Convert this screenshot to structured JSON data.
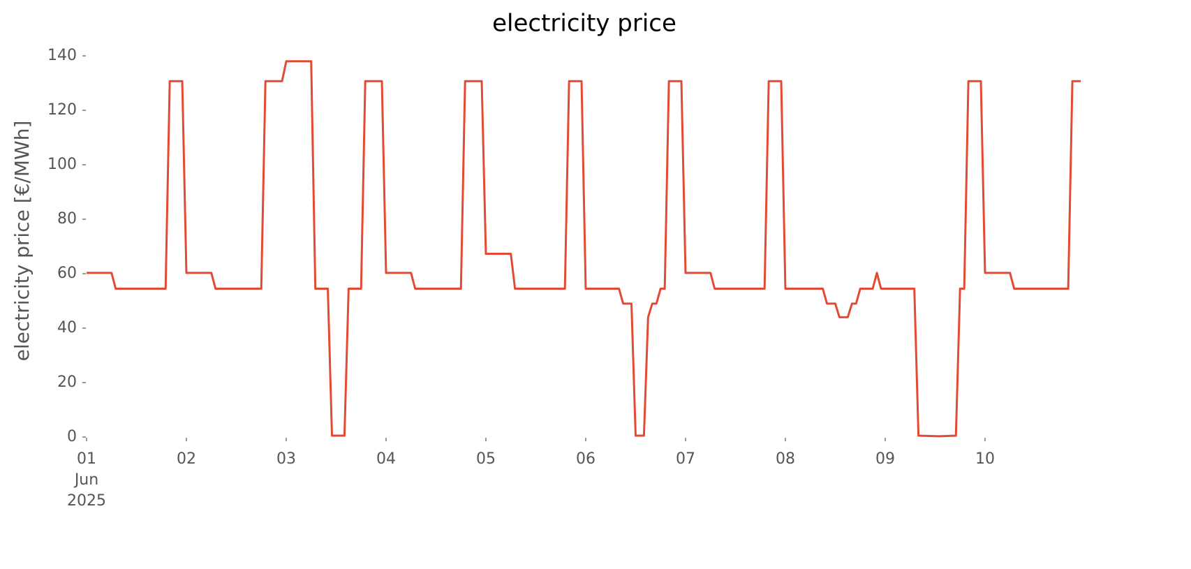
{
  "chart_data": {
    "type": "line",
    "title": "electricity price",
    "ylabel": "electricity price [€/MWh]",
    "x": [
      0,
      6,
      7,
      19,
      20,
      23,
      24,
      30,
      31,
      42,
      43,
      47,
      48,
      54,
      55,
      58,
      59,
      62,
      63,
      66,
      67,
      71,
      72,
      78,
      79,
      90,
      91,
      95,
      96,
      102,
      103,
      115,
      116,
      119,
      120,
      128,
      129,
      131,
      132,
      134,
      135,
      136,
      137,
      138,
      139,
      140,
      143,
      144,
      150,
      151,
      163,
      164,
      167,
      168,
      177,
      178,
      180,
      181,
      183,
      184,
      185,
      186,
      189,
      190,
      191,
      199,
      200,
      205,
      209,
      210,
      211,
      212,
      215,
      216,
      222,
      223,
      236,
      237,
      239
    ],
    "series": [
      {
        "name": "electricity price",
        "color": "#e24a33",
        "values": [
          60.3,
          60.3,
          54.5,
          54.5,
          130.7,
          130.7,
          60.3,
          60.3,
          54.5,
          54.5,
          130.7,
          130.7,
          138,
          138,
          54.5,
          54.5,
          0.5,
          0.5,
          54.5,
          54.5,
          130.7,
          130.7,
          60.3,
          60.3,
          54.5,
          54.5,
          130.7,
          130.7,
          67.3,
          67.3,
          54.5,
          54.5,
          130.7,
          130.7,
          54.5,
          54.5,
          49,
          49,
          0.5,
          0.5,
          44,
          49,
          49,
          54.5,
          54.5,
          130.7,
          130.7,
          60.3,
          60.3,
          54.5,
          54.5,
          130.7,
          130.7,
          54.5,
          54.5,
          49,
          49,
          44,
          44,
          49,
          49,
          54.5,
          54.5,
          60.3,
          54.5,
          54.5,
          0.5,
          0.3,
          0.5,
          54.5,
          54.5,
          130.7,
          130.7,
          60.3,
          60.3,
          54.5,
          54.5,
          130.7,
          130.7
        ]
      }
    ],
    "xlim": [
      0,
      239
    ],
    "xticks": [
      {
        "value": 0,
        "label": "01\nJun\n2025"
      },
      {
        "value": 24,
        "label": "02"
      },
      {
        "value": 48,
        "label": "03"
      },
      {
        "value": 72,
        "label": "04"
      },
      {
        "value": 96,
        "label": "05"
      },
      {
        "value": 120,
        "label": "06"
      },
      {
        "value": 144,
        "label": "07"
      },
      {
        "value": 168,
        "label": "08"
      },
      {
        "value": 192,
        "label": "09"
      },
      {
        "value": 216,
        "label": "10"
      }
    ],
    "ylim": [
      0,
      140
    ],
    "yticks": [
      0,
      20,
      40,
      60,
      80,
      100,
      120,
      140
    ],
    "grid": false
  }
}
